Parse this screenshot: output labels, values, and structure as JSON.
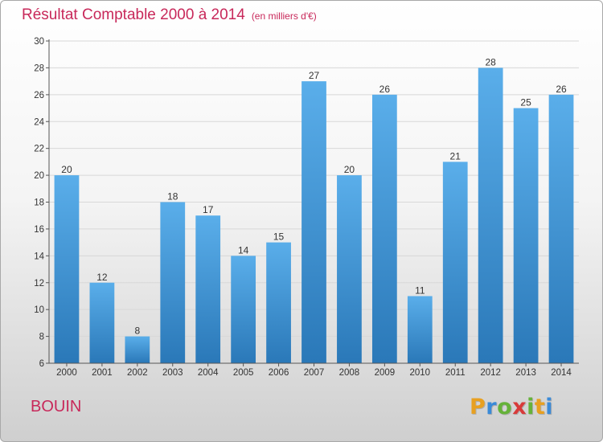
{
  "chart_data": {
    "type": "bar",
    "title": "Résultat Comptable 2000 à 2014",
    "subtitle": "(en milliers d'€)",
    "categories": [
      "2000",
      "2001",
      "2002",
      "2003",
      "2004",
      "2005",
      "2006",
      "2007",
      "2008",
      "2009",
      "2010",
      "2011",
      "2012",
      "2013",
      "2014"
    ],
    "values": [
      20,
      12,
      8,
      18,
      17,
      14,
      15,
      27,
      20,
      26,
      11,
      21,
      28,
      25,
      26
    ],
    "ylim": [
      6,
      30
    ],
    "yticks": [
      6,
      8,
      10,
      12,
      14,
      16,
      18,
      20,
      22,
      24,
      26,
      28,
      30
    ],
    "grid": true,
    "xlabel": "",
    "ylabel": ""
  },
  "commune": "BOUIN",
  "brand": {
    "letters": [
      "P",
      "r",
      "o",
      "x",
      "i",
      "t",
      "i"
    ],
    "colors": [
      "#e8a020",
      "#3a8ad8",
      "#66b23a",
      "#d83a3a",
      "#66b23a",
      "#e8a020",
      "#3a8ad8"
    ]
  },
  "colors": {
    "bar_top": "#5aaeea",
    "bar_bottom": "#2a78b8",
    "grid": "#d8d8d8",
    "axis": "#555555"
  }
}
